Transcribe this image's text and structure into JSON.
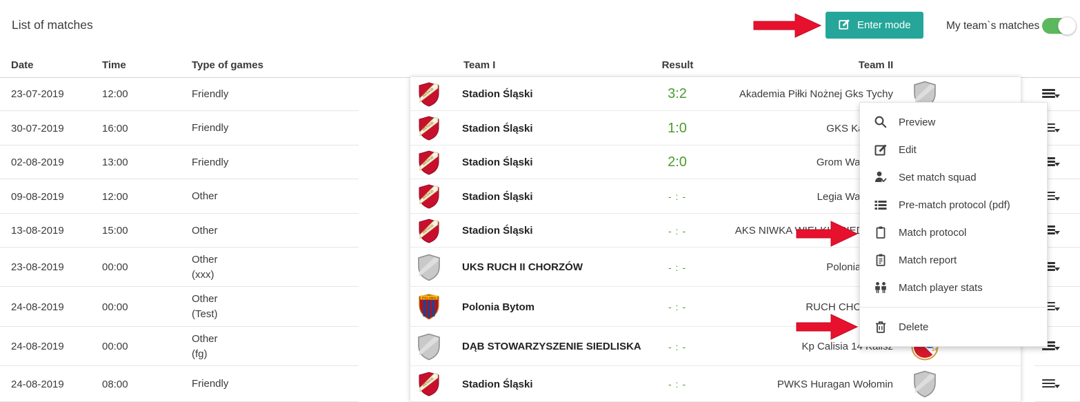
{
  "page": {
    "title": "List of matches"
  },
  "toolbar": {
    "enter_mode_label": "Enter mode",
    "toggle_label": "My team`s matches",
    "toggle_state": "on",
    "accent_teal": "#26a69a",
    "toggle_green": "#5cb85c"
  },
  "table": {
    "headers": {
      "date": "Date",
      "time": "Time",
      "type": "Type of games",
      "team1": "Team I",
      "result": "Result",
      "team2": "Team II"
    },
    "result_color": "#4a9b2e",
    "matches": [
      {
        "date": "23-07-2019",
        "time": "12:00",
        "type": "Friendly",
        "type_note": "",
        "team1": "Stadion Śląski",
        "emblem1": "beskid",
        "result": "3:2",
        "played": true,
        "team2": "Akademia Piłki Nożnej Gks Tychy",
        "emblem2": "grey"
      },
      {
        "date": "30-07-2019",
        "time": "16:00",
        "type": "Friendly",
        "type_note": "",
        "team1": "Stadion Śląski",
        "emblem1": "beskid",
        "result": "1:0",
        "played": true,
        "team2": "GKS Katowice",
        "emblem2": null
      },
      {
        "date": "02-08-2019",
        "time": "13:00",
        "type": "Friendly",
        "type_note": "",
        "team1": "Stadion Śląski",
        "emblem1": "beskid",
        "result": "2:0",
        "played": true,
        "team2": "Grom Warszawa",
        "emblem2": null
      },
      {
        "date": "09-08-2019",
        "time": "12:00",
        "type": "Other",
        "type_note": "",
        "team1": "Stadion Śląski",
        "emblem1": "beskid",
        "result": "- : -",
        "played": false,
        "team2": "Legia Warszawa",
        "emblem2": null
      },
      {
        "date": "13-08-2019",
        "time": "15:00",
        "type": "Other",
        "type_note": "",
        "team1": "Stadion Śląski",
        "emblem1": "beskid",
        "result": "- : -",
        "played": false,
        "team2": "AKS NIWKA WIELKIE SIEDLISKA",
        "emblem2": null
      },
      {
        "date": "23-08-2019",
        "time": "00:00",
        "type": "Other",
        "type_note": "(xxx)",
        "team1": "UKS RUCH II CHORZÓW",
        "emblem1": "grey",
        "result": "- : -",
        "played": false,
        "team2": "Polonia Bytom",
        "emblem2": null
      },
      {
        "date": "24-08-2019",
        "time": "00:00",
        "type": "Other",
        "type_note": "(Test)",
        "team1": "Polonia Bytom",
        "emblem1": "polonia",
        "result": "- : -",
        "played": false,
        "team2": "RUCH CHORZÓW",
        "emblem2": null
      },
      {
        "date": "24-08-2019",
        "time": "00:00",
        "type": "Other",
        "type_note": "(fg)",
        "team1": "DĄB STOWARZYSZENIE SIEDLISKA",
        "emblem1": "grey",
        "result": "- : -",
        "played": false,
        "team2": "Kp Calisia 14 Kalisz",
        "emblem2": "calisia"
      },
      {
        "date": "24-08-2019",
        "time": "08:00",
        "type": "Friendly",
        "type_note": "",
        "team1": "Stadion Śląski",
        "emblem1": "beskid",
        "result": "- : -",
        "played": false,
        "team2": "PWKS Huragan Wołomin",
        "emblem2": "grey"
      }
    ]
  },
  "context_menu": {
    "items": [
      {
        "icon": "search-icon",
        "label": "Preview"
      },
      {
        "icon": "edit-icon",
        "label": "Edit"
      },
      {
        "icon": "person-check-icon",
        "label": "Set match squad"
      },
      {
        "icon": "list-icon",
        "label": "Pre-match protocol (pdf)"
      },
      {
        "icon": "clipboard-icon",
        "label": "Match protocol"
      },
      {
        "icon": "clipboard-text-icon",
        "label": "Match report"
      },
      {
        "icon": "people-icon",
        "label": "Match player stats"
      },
      {
        "icon": "trash-icon",
        "label": "Delete",
        "divider_before": true
      }
    ]
  },
  "annotations": {
    "arrow_color": "#e8112d",
    "arrows": [
      {
        "points_to": "Enter mode button"
      },
      {
        "points_to": "Match protocol menu item"
      },
      {
        "points_to": "Delete menu item"
      }
    ]
  }
}
